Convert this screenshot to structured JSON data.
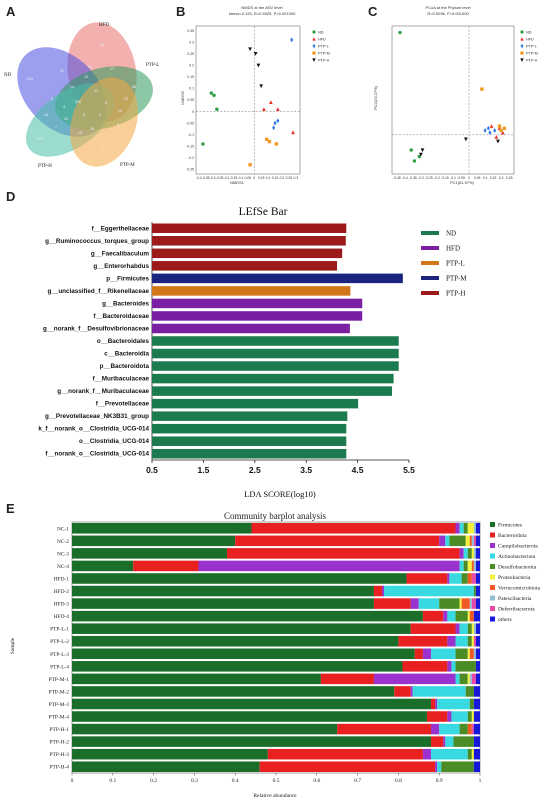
{
  "panels": {
    "a": "A",
    "b": "B",
    "c": "C",
    "d": "D",
    "e": "E"
  },
  "venn": {
    "sets": [
      "HFD",
      "ND",
      "PTP-L",
      "PTP-H",
      "PTP-M"
    ],
    "colors": [
      "#e8706b",
      "#4a4ee0",
      "#2f9a5c",
      "#48bfa6",
      "#f4a742"
    ],
    "numbers": [
      "90",
      "103",
      "58",
      "170",
      "77",
      "528",
      "31",
      "17",
      "24",
      "15",
      "10",
      "8",
      "12",
      "6",
      "14",
      "21",
      "7",
      "5",
      "9",
      "11",
      "13",
      "4",
      "3",
      "16",
      "19"
    ]
  },
  "nmds": {
    "title": "NMDS at the ASV level",
    "subtitle": "stress=0.125, R=0.5025, P=0.001000",
    "xlabel": "NMDS1",
    "ylabel": "NMDS2",
    "xticks": [
      "-0.4",
      "-0.35",
      "-0.3",
      "-0.25",
      "-0.2",
      "-0.15",
      "-0.1",
      "-0.05",
      "0",
      "0.05",
      "0.1",
      "0.15",
      "0.2",
      "0.25",
      "0.3"
    ],
    "yticks": [
      "0.35",
      "0.3",
      "0.25",
      "0.2",
      "0.15",
      "0.1",
      "0.05",
      "0",
      "-0.05",
      "-0.1",
      "-0.15",
      "-0.2",
      "-0.25"
    ],
    "xlim": [
      -0.42,
      0.33
    ],
    "ylim": [
      -0.27,
      0.37
    ],
    "groups": [
      {
        "name": "ND",
        "color": "#2e9e44",
        "shape": "circle",
        "points": [
          [
            -0.31,
            0.08
          ],
          [
            -0.29,
            0.07
          ],
          [
            -0.27,
            0.01
          ],
          [
            -0.37,
            -0.14
          ]
        ]
      },
      {
        "name": "HFD",
        "color": "#e8322a",
        "shape": "triangle",
        "points": [
          [
            0.12,
            0.04
          ],
          [
            0.17,
            0.01
          ],
          [
            0.28,
            -0.09
          ],
          [
            0.07,
            0.01
          ]
        ]
      },
      {
        "name": "PTP-L",
        "color": "#2d7be6",
        "shape": "diamond",
        "points": [
          [
            0.27,
            0.31
          ],
          [
            0.17,
            -0.04
          ],
          [
            0.14,
            -0.07
          ],
          [
            0.15,
            -0.05
          ]
        ]
      },
      {
        "name": "PTP-M",
        "color": "#f29b22",
        "shape": "square",
        "points": [
          [
            -0.03,
            -0.23
          ],
          [
            0.11,
            -0.13
          ],
          [
            0.16,
            -0.14
          ],
          [
            0.09,
            -0.12
          ]
        ]
      },
      {
        "name": "PTP-H",
        "color": "#111111",
        "shape": "invtriangle",
        "points": [
          [
            -0.03,
            0.27
          ],
          [
            0.01,
            0.25
          ],
          [
            0.03,
            0.2
          ],
          [
            0.05,
            0.11
          ]
        ]
      }
    ]
  },
  "pcoa": {
    "title": "PCoA at the Phylum level",
    "subtitle": "R=0.5296, P=0.001000",
    "xlabel": "PC1(61.97%)",
    "ylabel": "PC2(23.27%)",
    "xticks": [
      "-0.45",
      "-0.4",
      "-0.35",
      "-0.3",
      "-0.25",
      "-0.2",
      "-0.15",
      "-0.1",
      "-0.05",
      "0",
      "0.05",
      "0.1",
      "0.15",
      "0.2",
      "0.25"
    ],
    "xlim": [
      -0.48,
      0.28
    ],
    "ylim": [
      -0.18,
      0.5
    ],
    "groups": [
      {
        "name": "ND",
        "color": "#2e9e44",
        "shape": "circle",
        "points": [
          [
            -0.43,
            0.47
          ],
          [
            -0.36,
            -0.07
          ],
          [
            -0.34,
            -0.12
          ],
          [
            -0.31,
            -0.1
          ]
        ]
      },
      {
        "name": "HFD",
        "color": "#e8322a",
        "shape": "triangle",
        "points": [
          [
            0.17,
            -0.01
          ],
          [
            0.19,
            0.03
          ],
          [
            0.14,
            0.04
          ],
          [
            0.21,
            0.01
          ]
        ]
      },
      {
        "name": "PTP-L",
        "color": "#2d7be6",
        "shape": "diamond",
        "points": [
          [
            0.1,
            0.02
          ],
          [
            0.13,
            0.01
          ],
          [
            0.16,
            0.02
          ],
          [
            0.12,
            0.03
          ]
        ]
      },
      {
        "name": "PTP-M",
        "color": "#f29b22",
        "shape": "square",
        "points": [
          [
            0.08,
            0.21
          ],
          [
            0.19,
            0.04
          ],
          [
            0.2,
            0.02
          ],
          [
            0.22,
            0.03
          ]
        ]
      },
      {
        "name": "PTP-H",
        "color": "#111111",
        "shape": "invtriangle",
        "points": [
          [
            -0.29,
            -0.07
          ],
          [
            -0.02,
            -0.02
          ],
          [
            0.18,
            -0.03
          ],
          [
            -0.3,
            -0.09
          ]
        ]
      }
    ]
  },
  "chart_data": {
    "type": "bar",
    "title": "LEfSe Bar",
    "xlabel": "LDA SCORE(log10)",
    "xlim": [
      0.5,
      5.5
    ],
    "xticks": [
      "0.5",
      "1.5",
      "2.5",
      "3.5",
      "4.5",
      "5.5"
    ],
    "groups": [
      {
        "name": "ND",
        "color": "#1b7a4e"
      },
      {
        "name": "HFD",
        "color": "#7b1fa2"
      },
      {
        "name": "PTP-L",
        "color": "#d2761a"
      },
      {
        "name": "PTP-M",
        "color": "#1a237e"
      },
      {
        "name": "PTP-H",
        "color": "#9c1a1a"
      }
    ],
    "bars": [
      {
        "label": "f__Eggerthellaceae",
        "value": 4.28,
        "group": "PTP-H"
      },
      {
        "label": "g__Ruminococcus_torques_group",
        "value": 4.27,
        "group": "PTP-H"
      },
      {
        "label": "g__Faecalibaculum",
        "value": 4.2,
        "group": "PTP-H"
      },
      {
        "label": "g__Enterorhabdus",
        "value": 4.1,
        "group": "PTP-H"
      },
      {
        "label": "p__Firmicutes",
        "value": 5.38,
        "group": "PTP-M"
      },
      {
        "label": "g__unclassified_f__Rikenellaceae",
        "value": 4.36,
        "group": "PTP-L"
      },
      {
        "label": "g__Bacteroides",
        "value": 4.59,
        "group": "HFD"
      },
      {
        "label": "f__Bacteroidaceae",
        "value": 4.59,
        "group": "HFD"
      },
      {
        "label": "g__norank_f__Desulfovibrionaceae",
        "value": 4.35,
        "group": "HFD"
      },
      {
        "label": "o__Bacteroidales",
        "value": 5.3,
        "group": "ND"
      },
      {
        "label": "c__Bacteroidia",
        "value": 5.3,
        "group": "ND"
      },
      {
        "label": "p__Bacteroidota",
        "value": 5.3,
        "group": "ND"
      },
      {
        "label": "f__Muribaculaceae",
        "value": 5.2,
        "group": "ND"
      },
      {
        "label": "g__norank_f__Muribaculaceae",
        "value": 5.17,
        "group": "ND"
      },
      {
        "label": "f__Prevotellaceae",
        "value": 4.51,
        "group": "ND"
      },
      {
        "label": "g__Prevotellaceae_NK3B31_group",
        "value": 4.3,
        "group": "ND"
      },
      {
        "label": "k_f__norank_o__Clostridia_UCG-014",
        "value": 4.28,
        "group": "ND"
      },
      {
        "label": "o__Clostridia_UCG-014",
        "value": 4.28,
        "group": "ND"
      },
      {
        "label": "f__norank_o__Clostridia_UCG-014",
        "value": 4.28,
        "group": "ND"
      }
    ]
  },
  "barplot": {
    "title": "Community barplot analysis",
    "xlabel": "Relative abundance",
    "ylabel": "Sample",
    "xticks": [
      "0",
      "0.1",
      "0.2",
      "0.3",
      "0.4",
      "0.5",
      "0.6",
      "0.7",
      "0.8",
      "0.9",
      "1"
    ],
    "taxa": [
      "Firmicutes",
      "Bacteroidota",
      "Campilobacterota",
      "Actinobacteriota",
      "Desulfobacterota",
      "Proteobacteria",
      "Verrucomicrobiota",
      "Patescibacteria",
      "Deferribacterota",
      "others"
    ],
    "colors": [
      "#1a6e2a",
      "#e8201f",
      "#9a32cd",
      "#38d9e0",
      "#4c8c24",
      "#f5f03a",
      "#f05a22",
      "#8ec0d8",
      "#e84aa8",
      "#1818d8"
    ],
    "samples": [
      {
        "name": "NC-1",
        "values": [
          0.44,
          0.5,
          0.01,
          0.01,
          0.01,
          0.015,
          0.0,
          0.005,
          0.0,
          0.01
        ]
      },
      {
        "name": "NC-2",
        "values": [
          0.4,
          0.5,
          0.015,
          0.01,
          0.04,
          0.01,
          0.005,
          0.005,
          0.005,
          0.01
        ]
      },
      {
        "name": "NC-3",
        "values": [
          0.38,
          0.57,
          0.01,
          0.01,
          0.01,
          0.005,
          0.0,
          0.005,
          0.0,
          0.01
        ]
      },
      {
        "name": "NC-4",
        "values": [
          0.15,
          0.16,
          0.64,
          0.01,
          0.01,
          0.01,
          0.005,
          0.005,
          0.0,
          0.01
        ]
      },
      {
        "name": "HFD-1",
        "values": [
          0.82,
          0.1,
          0.005,
          0.03,
          0.015,
          0.0,
          0.01,
          0.0,
          0.01,
          0.01
        ]
      },
      {
        "name": "HFD-2",
        "values": [
          0.74,
          0.02,
          0.005,
          0.22,
          0.005,
          0.0,
          0.0,
          0.0,
          0.0,
          0.01
        ]
      },
      {
        "name": "HFD-3",
        "values": [
          0.74,
          0.09,
          0.02,
          0.05,
          0.05,
          0.005,
          0.02,
          0.005,
          0.01,
          0.01
        ]
      },
      {
        "name": "HFD-4",
        "values": [
          0.86,
          0.05,
          0.01,
          0.02,
          0.03,
          0.005,
          0.01,
          0.0,
          0.0,
          0.015
        ]
      },
      {
        "name": "PTP-L-1",
        "values": [
          0.83,
          0.11,
          0.01,
          0.02,
          0.01,
          0.005,
          0.0,
          0.005,
          0.0,
          0.01
        ]
      },
      {
        "name": "PTP-L-2",
        "values": [
          0.8,
          0.12,
          0.02,
          0.03,
          0.01,
          0.005,
          0.0,
          0.0,
          0.005,
          0.01
        ]
      },
      {
        "name": "PTP-L-3",
        "values": [
          0.84,
          0.02,
          0.02,
          0.06,
          0.03,
          0.005,
          0.01,
          0.005,
          0.0,
          0.01
        ]
      },
      {
        "name": "PTP-L-4",
        "values": [
          0.81,
          0.11,
          0.01,
          0.01,
          0.05,
          0.0,
          0.0,
          0.0,
          0.0,
          0.01
        ]
      },
      {
        "name": "PTP-M-1",
        "values": [
          0.61,
          0.13,
          0.2,
          0.01,
          0.02,
          0.005,
          0.0,
          0.005,
          0.01,
          0.01
        ]
      },
      {
        "name": "PTP-M-2",
        "values": [
          0.79,
          0.04,
          0.005,
          0.13,
          0.02,
          0.0,
          0.0,
          0.0,
          0.0,
          0.015
        ]
      },
      {
        "name": "PTP-M-3",
        "values": [
          0.88,
          0.01,
          0.005,
          0.08,
          0.01,
          0.0,
          0.0,
          0.0,
          0.0,
          0.015
        ]
      },
      {
        "name": "PTP-M-4",
        "values": [
          0.87,
          0.05,
          0.01,
          0.04,
          0.01,
          0.005,
          0.0,
          0.0,
          0.0,
          0.015
        ]
      },
      {
        "name": "PTP-H-1",
        "values": [
          0.65,
          0.23,
          0.02,
          0.05,
          0.02,
          0.0,
          0.01,
          0.0,
          0.005,
          0.015
        ]
      },
      {
        "name": "PTP-H-2",
        "values": [
          0.88,
          0.03,
          0.005,
          0.02,
          0.05,
          0.0,
          0.0,
          0.0,
          0.0,
          0.015
        ]
      },
      {
        "name": "PTP-H-3",
        "values": [
          0.48,
          0.38,
          0.02,
          0.09,
          0.01,
          0.005,
          0.0,
          0.0,
          0.0,
          0.015
        ]
      },
      {
        "name": "PTP-H-4",
        "values": [
          0.46,
          0.43,
          0.005,
          0.01,
          0.08,
          0.0,
          0.0,
          0.0,
          0.0,
          0.015
        ]
      }
    ]
  }
}
